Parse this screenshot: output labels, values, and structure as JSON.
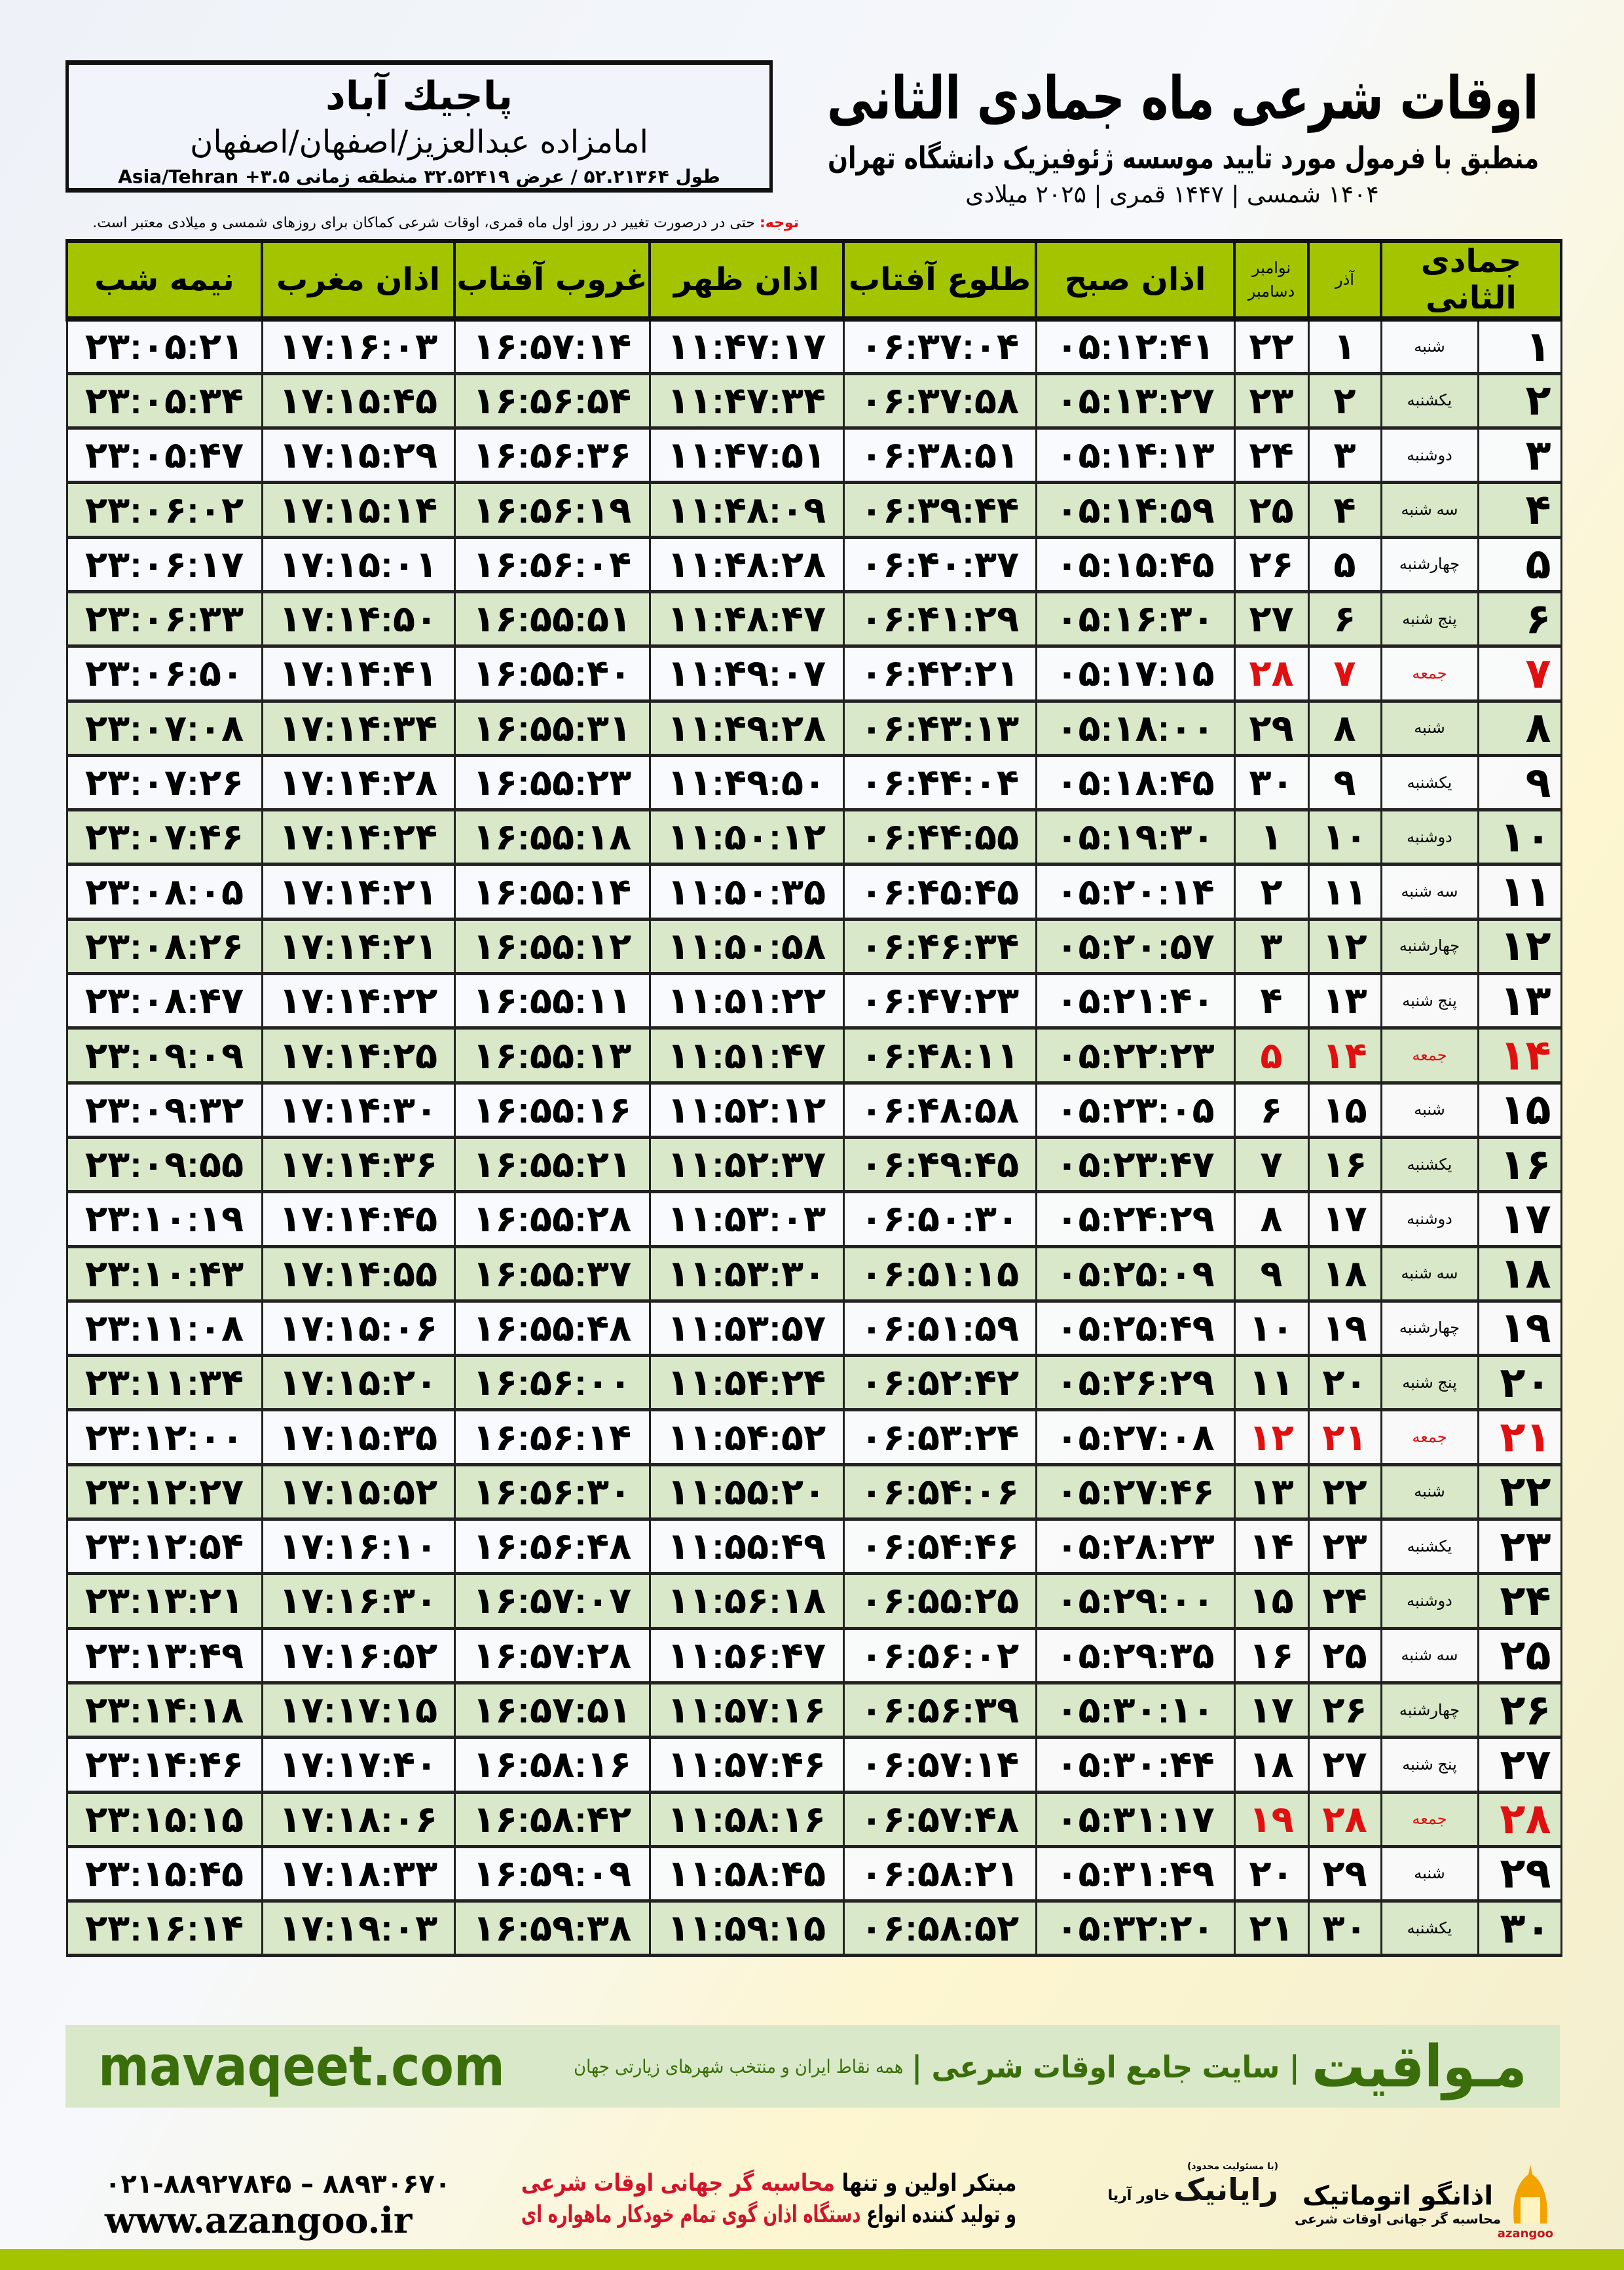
{
  "location": {
    "city": "پاجیك آباد",
    "place": "امامزاده عبدالعزیز/اصفهان/اصفهان",
    "coords": "طول ۵۲.۲۱۳۶۴ / عرض ۳۲.۵۲۴۱۹ منطقه زمانی ۳.۵+ Asia/Tehran"
  },
  "header": {
    "title": "اوقات شرعی ماه جمادی الثانی",
    "subtitle": "منطبق با فرمول مورد تایید موسسه ژئوفیزیک دانشگاه تهران",
    "years": "۱۴۰۴ شمسی | ۱۴۴۷ قمری | ۲۰۲۵ میلادی"
  },
  "note": {
    "label": "توجه:",
    "text": " حتی در درصورت تغییر در روز اول ماه قمری، اوقات شرعی کماکان برای روزهای شمسی و میلادی معتبر است."
  },
  "table": {
    "columns": {
      "month": "جمادی الثانی",
      "azar": "آذر",
      "gregorian_top": "نوامبر",
      "gregorian_bottom": "دسامبر",
      "fajr": "اذان صبح",
      "sunrise": "طلوع آفتاب",
      "dhuhr": "اذان ظهر",
      "sunset": "غروب آفتاب",
      "maghrib": "اذان مغرب",
      "midnight": "نیمه شب"
    },
    "holiday_color": "#e01010",
    "rows": [
      [
        "۱",
        "شنبه",
        "۱",
        "۲۲",
        "۰۵:۱۲:۴۱",
        "۰۶:۳۷:۰۴",
        "۱۱:۴۷:۱۷",
        "۱۶:۵۷:۱۴",
        "۱۷:۱۶:۰۳",
        "۲۳:۰۵:۲۱"
      ],
      [
        "۲",
        "یکشنبه",
        "۲",
        "۲۳",
        "۰۵:۱۳:۲۷",
        "۰۶:۳۷:۵۸",
        "۱۱:۴۷:۳۴",
        "۱۶:۵۶:۵۴",
        "۱۷:۱۵:۴۵",
        "۲۳:۰۵:۳۴"
      ],
      [
        "۳",
        "دوشنبه",
        "۳",
        "۲۴",
        "۰۵:۱۴:۱۳",
        "۰۶:۳۸:۵۱",
        "۱۱:۴۷:۵۱",
        "۱۶:۵۶:۳۶",
        "۱۷:۱۵:۲۹",
        "۲۳:۰۵:۴۷"
      ],
      [
        "۴",
        "سه شنبه",
        "۴",
        "۲۵",
        "۰۵:۱۴:۵۹",
        "۰۶:۳۹:۴۴",
        "۱۱:۴۸:۰۹",
        "۱۶:۵۶:۱۹",
        "۱۷:۱۵:۱۴",
        "۲۳:۰۶:۰۲"
      ],
      [
        "۵",
        "چهارشنبه",
        "۵",
        "۲۶",
        "۰۵:۱۵:۴۵",
        "۰۶:۴۰:۳۷",
        "۱۱:۴۸:۲۸",
        "۱۶:۵۶:۰۴",
        "۱۷:۱۵:۰۱",
        "۲۳:۰۶:۱۷"
      ],
      [
        "۶",
        "پنج شنبه",
        "۶",
        "۲۷",
        "۰۵:۱۶:۳۰",
        "۰۶:۴۱:۲۹",
        "۱۱:۴۸:۴۷",
        "۱۶:۵۵:۵۱",
        "۱۷:۱۴:۵۰",
        "۲۳:۰۶:۳۳"
      ],
      [
        "۷",
        "جمعه",
        "۷",
        "۲۸",
        "۰۵:۱۷:۱۵",
        "۰۶:۴۲:۲۱",
        "۱۱:۴۹:۰۷",
        "۱۶:۵۵:۴۰",
        "۱۷:۱۴:۴۱",
        "۲۳:۰۶:۵۰"
      ],
      [
        "۸",
        "شنبه",
        "۸",
        "۲۹",
        "۰۵:۱۸:۰۰",
        "۰۶:۴۳:۱۳",
        "۱۱:۴۹:۲۸",
        "۱۶:۵۵:۳۱",
        "۱۷:۱۴:۳۴",
        "۲۳:۰۷:۰۸"
      ],
      [
        "۹",
        "یکشنبه",
        "۹",
        "۳۰",
        "۰۵:۱۸:۴۵",
        "۰۶:۴۴:۰۴",
        "۱۱:۴۹:۵۰",
        "۱۶:۵۵:۲۳",
        "۱۷:۱۴:۲۸",
        "۲۳:۰۷:۲۶"
      ],
      [
        "۱۰",
        "دوشنبه",
        "۱۰",
        "۱",
        "۰۵:۱۹:۳۰",
        "۰۶:۴۴:۵۵",
        "۱۱:۵۰:۱۲",
        "۱۶:۵۵:۱۸",
        "۱۷:۱۴:۲۴",
        "۲۳:۰۷:۴۶"
      ],
      [
        "۱۱",
        "سه شنبه",
        "۱۱",
        "۲",
        "۰۵:۲۰:۱۴",
        "۰۶:۴۵:۴۵",
        "۱۱:۵۰:۳۵",
        "۱۶:۵۵:۱۴",
        "۱۷:۱۴:۲۱",
        "۲۳:۰۸:۰۵"
      ],
      [
        "۱۲",
        "چهارشنبه",
        "۱۲",
        "۳",
        "۰۵:۲۰:۵۷",
        "۰۶:۴۶:۳۴",
        "۱۱:۵۰:۵۸",
        "۱۶:۵۵:۱۲",
        "۱۷:۱۴:۲۱",
        "۲۳:۰۸:۲۶"
      ],
      [
        "۱۳",
        "پنج شنبه",
        "۱۳",
        "۴",
        "۰۵:۲۱:۴۰",
        "۰۶:۴۷:۲۳",
        "۱۱:۵۱:۲۲",
        "۱۶:۵۵:۱۱",
        "۱۷:۱۴:۲۲",
        "۲۳:۰۸:۴۷"
      ],
      [
        "۱۴",
        "جمعه",
        "۱۴",
        "۵",
        "۰۵:۲۲:۲۳",
        "۰۶:۴۸:۱۱",
        "۱۱:۵۱:۴۷",
        "۱۶:۵۵:۱۳",
        "۱۷:۱۴:۲۵",
        "۲۳:۰۹:۰۹"
      ],
      [
        "۱۵",
        "شنبه",
        "۱۵",
        "۶",
        "۰۵:۲۳:۰۵",
        "۰۶:۴۸:۵۸",
        "۱۱:۵۲:۱۲",
        "۱۶:۵۵:۱۶",
        "۱۷:۱۴:۳۰",
        "۲۳:۰۹:۳۲"
      ],
      [
        "۱۶",
        "یکشنبه",
        "۱۶",
        "۷",
        "۰۵:۲۳:۴۷",
        "۰۶:۴۹:۴۵",
        "۱۱:۵۲:۳۷",
        "۱۶:۵۵:۲۱",
        "۱۷:۱۴:۳۶",
        "۲۳:۰۹:۵۵"
      ],
      [
        "۱۷",
        "دوشنبه",
        "۱۷",
        "۸",
        "۰۵:۲۴:۲۹",
        "۰۶:۵۰:۳۰",
        "۱۱:۵۳:۰۳",
        "۱۶:۵۵:۲۸",
        "۱۷:۱۴:۴۵",
        "۲۳:۱۰:۱۹"
      ],
      [
        "۱۸",
        "سه شنبه",
        "۱۸",
        "۹",
        "۰۵:۲۵:۰۹",
        "۰۶:۵۱:۱۵",
        "۱۱:۵۳:۳۰",
        "۱۶:۵۵:۳۷",
        "۱۷:۱۴:۵۵",
        "۲۳:۱۰:۴۳"
      ],
      [
        "۱۹",
        "چهارشنبه",
        "۱۹",
        "۱۰",
        "۰۵:۲۵:۴۹",
        "۰۶:۵۱:۵۹",
        "۱۱:۵۳:۵۷",
        "۱۶:۵۵:۴۸",
        "۱۷:۱۵:۰۶",
        "۲۳:۱۱:۰۸"
      ],
      [
        "۲۰",
        "پنج شنبه",
        "۲۰",
        "۱۱",
        "۰۵:۲۶:۲۹",
        "۰۶:۵۲:۴۲",
        "۱۱:۵۴:۲۴",
        "۱۶:۵۶:۰۰",
        "۱۷:۱۵:۲۰",
        "۲۳:۱۱:۳۴"
      ],
      [
        "۲۱",
        "جمعه",
        "۲۱",
        "۱۲",
        "۰۵:۲۷:۰۸",
        "۰۶:۵۳:۲۴",
        "۱۱:۵۴:۵۲",
        "۱۶:۵۶:۱۴",
        "۱۷:۱۵:۳۵",
        "۲۳:۱۲:۰۰"
      ],
      [
        "۲۲",
        "شنبه",
        "۲۲",
        "۱۳",
        "۰۵:۲۷:۴۶",
        "۰۶:۵۴:۰۶",
        "۱۱:۵۵:۲۰",
        "۱۶:۵۶:۳۰",
        "۱۷:۱۵:۵۲",
        "۲۳:۱۲:۲۷"
      ],
      [
        "۲۳",
        "یکشنبه",
        "۲۳",
        "۱۴",
        "۰۵:۲۸:۲۳",
        "۰۶:۵۴:۴۶",
        "۱۱:۵۵:۴۹",
        "۱۶:۵۶:۴۸",
        "۱۷:۱۶:۱۰",
        "۲۳:۱۲:۵۴"
      ],
      [
        "۲۴",
        "دوشنبه",
        "۲۴",
        "۱۵",
        "۰۵:۲۹:۰۰",
        "۰۶:۵۵:۲۵",
        "۱۱:۵۶:۱۸",
        "۱۶:۵۷:۰۷",
        "۱۷:۱۶:۳۰",
        "۲۳:۱۳:۲۱"
      ],
      [
        "۲۵",
        "سه شنبه",
        "۲۵",
        "۱۶",
        "۰۵:۲۹:۳۵",
        "۰۶:۵۶:۰۲",
        "۱۱:۵۶:۴۷",
        "۱۶:۵۷:۲۸",
        "۱۷:۱۶:۵۲",
        "۲۳:۱۳:۴۹"
      ],
      [
        "۲۶",
        "چهارشنبه",
        "۲۶",
        "۱۷",
        "۰۵:۳۰:۱۰",
        "۰۶:۵۶:۳۹",
        "۱۱:۵۷:۱۶",
        "۱۶:۵۷:۵۱",
        "۱۷:۱۷:۱۵",
        "۲۳:۱۴:۱۸"
      ],
      [
        "۲۷",
        "پنج شنبه",
        "۲۷",
        "۱۸",
        "۰۵:۳۰:۴۴",
        "۰۶:۵۷:۱۴",
        "۱۱:۵۷:۴۶",
        "۱۶:۵۸:۱۶",
        "۱۷:۱۷:۴۰",
        "۲۳:۱۴:۴۶"
      ],
      [
        "۲۸",
        "جمعه",
        "۲۸",
        "۱۹",
        "۰۵:۳۱:۱۷",
        "۰۶:۵۷:۴۸",
        "۱۱:۵۸:۱۶",
        "۱۶:۵۸:۴۲",
        "۱۷:۱۸:۰۶",
        "۲۳:۱۵:۱۵"
      ],
      [
        "۲۹",
        "شنبه",
        "۲۹",
        "۲۰",
        "۰۵:۳۱:۴۹",
        "۰۶:۵۸:۲۱",
        "۱۱:۵۸:۴۵",
        "۱۶:۵۹:۰۹",
        "۱۷:۱۸:۳۳",
        "۲۳:۱۵:۴۵"
      ],
      [
        "۳۰",
        "یکشنبه",
        "۳۰",
        "۲۱",
        "۰۵:۳۲:۲۰",
        "۰۶:۵۸:۵۲",
        "۱۱:۵۹:۱۵",
        "۱۶:۵۹:۳۸",
        "۱۷:۱۹:۰۳",
        "۲۳:۱۶:۱۴"
      ]
    ]
  },
  "banner": {
    "brand": "مـواقیت",
    "slogan": "| سایت جامع اوقات شرعی |",
    "sub": "همه نقاط ایران و منتخب شهرهای زیارتی جهان",
    "site": "mavaqeet.com",
    "brand_color": "#3a6e0a"
  },
  "footer": {
    "logo1": "اذانگو اتوماتیک",
    "logo1_sub": "محاسبه گر جهانی اوقات شرعی",
    "logo1_latin": "azangoo",
    "logo2": "رایانیک",
    "logo2_sub": "خاور آریا",
    "logo2_note": "(با مسئولیت محدود)",
    "promo_line1_a": "مبتکر اولین و تنها ",
    "promo_line1_b": "محاسبه گر جهانی اوقات شرعی",
    "promo_line2_a": "و تولید کننده انواع ",
    "promo_line2_b": "دستگاه اذان گوی تمام خودکار ماهواره ای",
    "phone": "۰۲۱-۸۸۹۲۷۸۴۵ – ۸۸۹۳۰۶۷۰",
    "website": "www.azangoo.ir"
  }
}
